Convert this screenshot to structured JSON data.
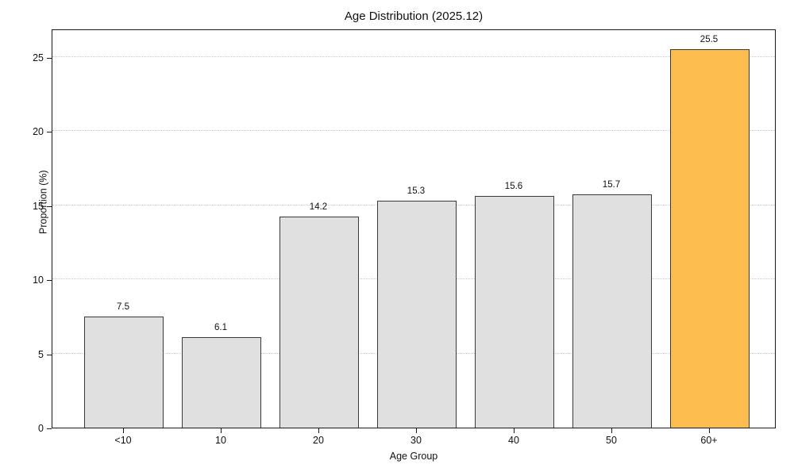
{
  "chart_data": {
    "type": "bar",
    "title": "Age Distribution (2025.12)",
    "xlabel": "Age Group",
    "ylabel": "Proportion (%)",
    "categories": [
      "<10",
      "10",
      "20",
      "30",
      "40",
      "50",
      "60+"
    ],
    "values": [
      7.5,
      6.1,
      14.2,
      15.3,
      15.6,
      15.7,
      25.5
    ],
    "bar_labels": [
      "7.5",
      "6.1",
      "14.2",
      "15.3",
      "15.6",
      "15.7",
      "25.5"
    ],
    "highlight_index": 6,
    "colors": {
      "bar_fill": "#e0e0e0",
      "highlight_fill": "#fcbd4e",
      "bar_edge": "#3a3a3a"
    },
    "ylim": [
      0,
      26.9
    ],
    "yticks": [
      0,
      5,
      10,
      15,
      20,
      25
    ],
    "grid": "horizontal-dotted",
    "legend": "none"
  }
}
